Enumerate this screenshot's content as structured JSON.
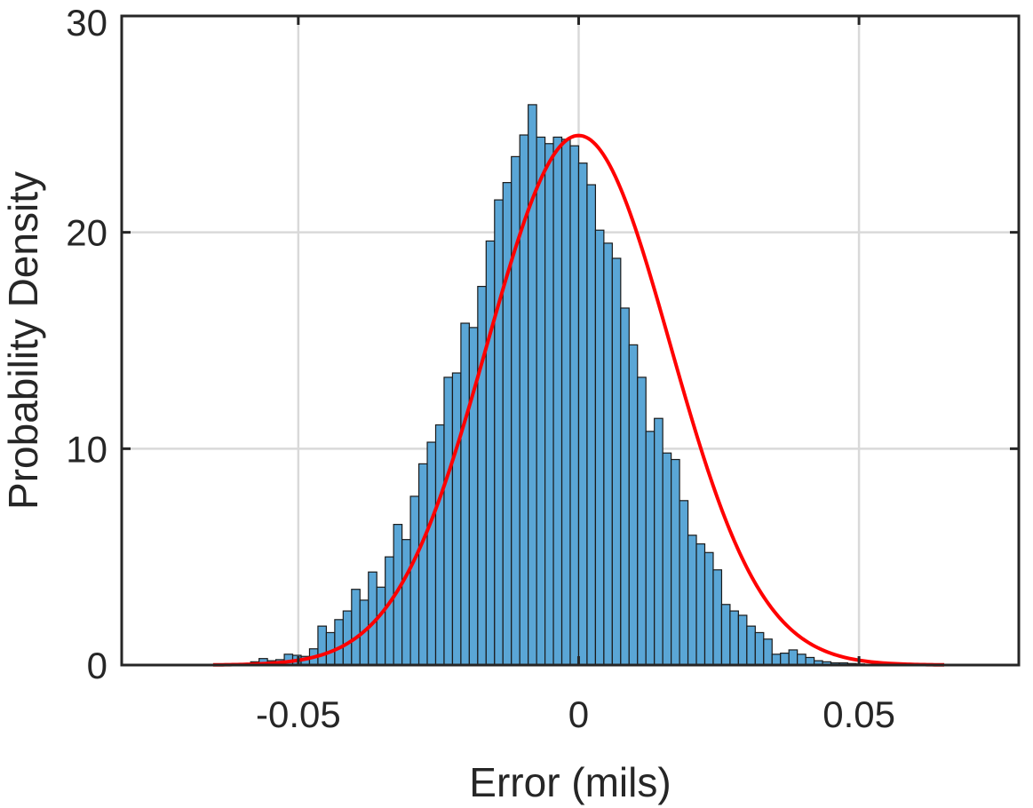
{
  "chart_data": {
    "type": "bar",
    "title": "",
    "xlabel": "Error (mils)",
    "ylabel": "Probability Density",
    "xlim": [
      -0.0815,
      0.0785
    ],
    "ylim": [
      0,
      30
    ],
    "xticks": [
      -0.05,
      0,
      0.05
    ],
    "xtick_labels": [
      "-0.05",
      "0",
      "0.05"
    ],
    "yticks": [
      0,
      10,
      20,
      30
    ],
    "ytick_labels": [
      "0",
      "10",
      "20",
      "30"
    ],
    "grid": true,
    "bin_width": 0.0015,
    "bin_start": -0.06,
    "values": [
      0.05,
      0.15,
      0.3,
      0.2,
      0.25,
      0.5,
      0.45,
      0.4,
      0.75,
      1.8,
      1.5,
      2.1,
      2.5,
      3.5,
      3.0,
      4.3,
      3.6,
      5.0,
      6.5,
      5.8,
      7.8,
      9.3,
      10.3,
      11.1,
      13.3,
      13.5,
      15.8,
      15.6,
      17.5,
      19.6,
      21.5,
      22.3,
      23.5,
      24.5,
      25.9,
      24.4,
      24.1,
      24.4,
      24.3,
      24.0,
      23.2,
      22.2,
      20.1,
      19.5,
      18.8,
      16.5,
      14.8,
      13.3,
      10.8,
      11.4,
      9.8,
      9.5,
      7.6,
      6.0,
      5.6,
      5.2,
      4.4,
      2.8,
      2.5,
      2.3,
      1.8,
      1.5,
      1.2,
      0.5,
      0.55,
      0.7,
      0.5,
      0.35,
      0.2,
      0.15,
      0.1,
      0.1,
      0.07,
      0.05,
      0.03,
      0.03,
      0.02,
      0.02,
      0.02,
      0.01,
      0.01,
      0.01,
      0.01,
      0.01,
      0.01,
      0.01,
      0.01,
      0.01
    ],
    "fit": {
      "type": "normal",
      "mean": 0.0,
      "std": 0.0163,
      "color": "#ff0000"
    },
    "bar_color": "#5aa6d6",
    "bar_edge_color": "#1a1a1a"
  }
}
